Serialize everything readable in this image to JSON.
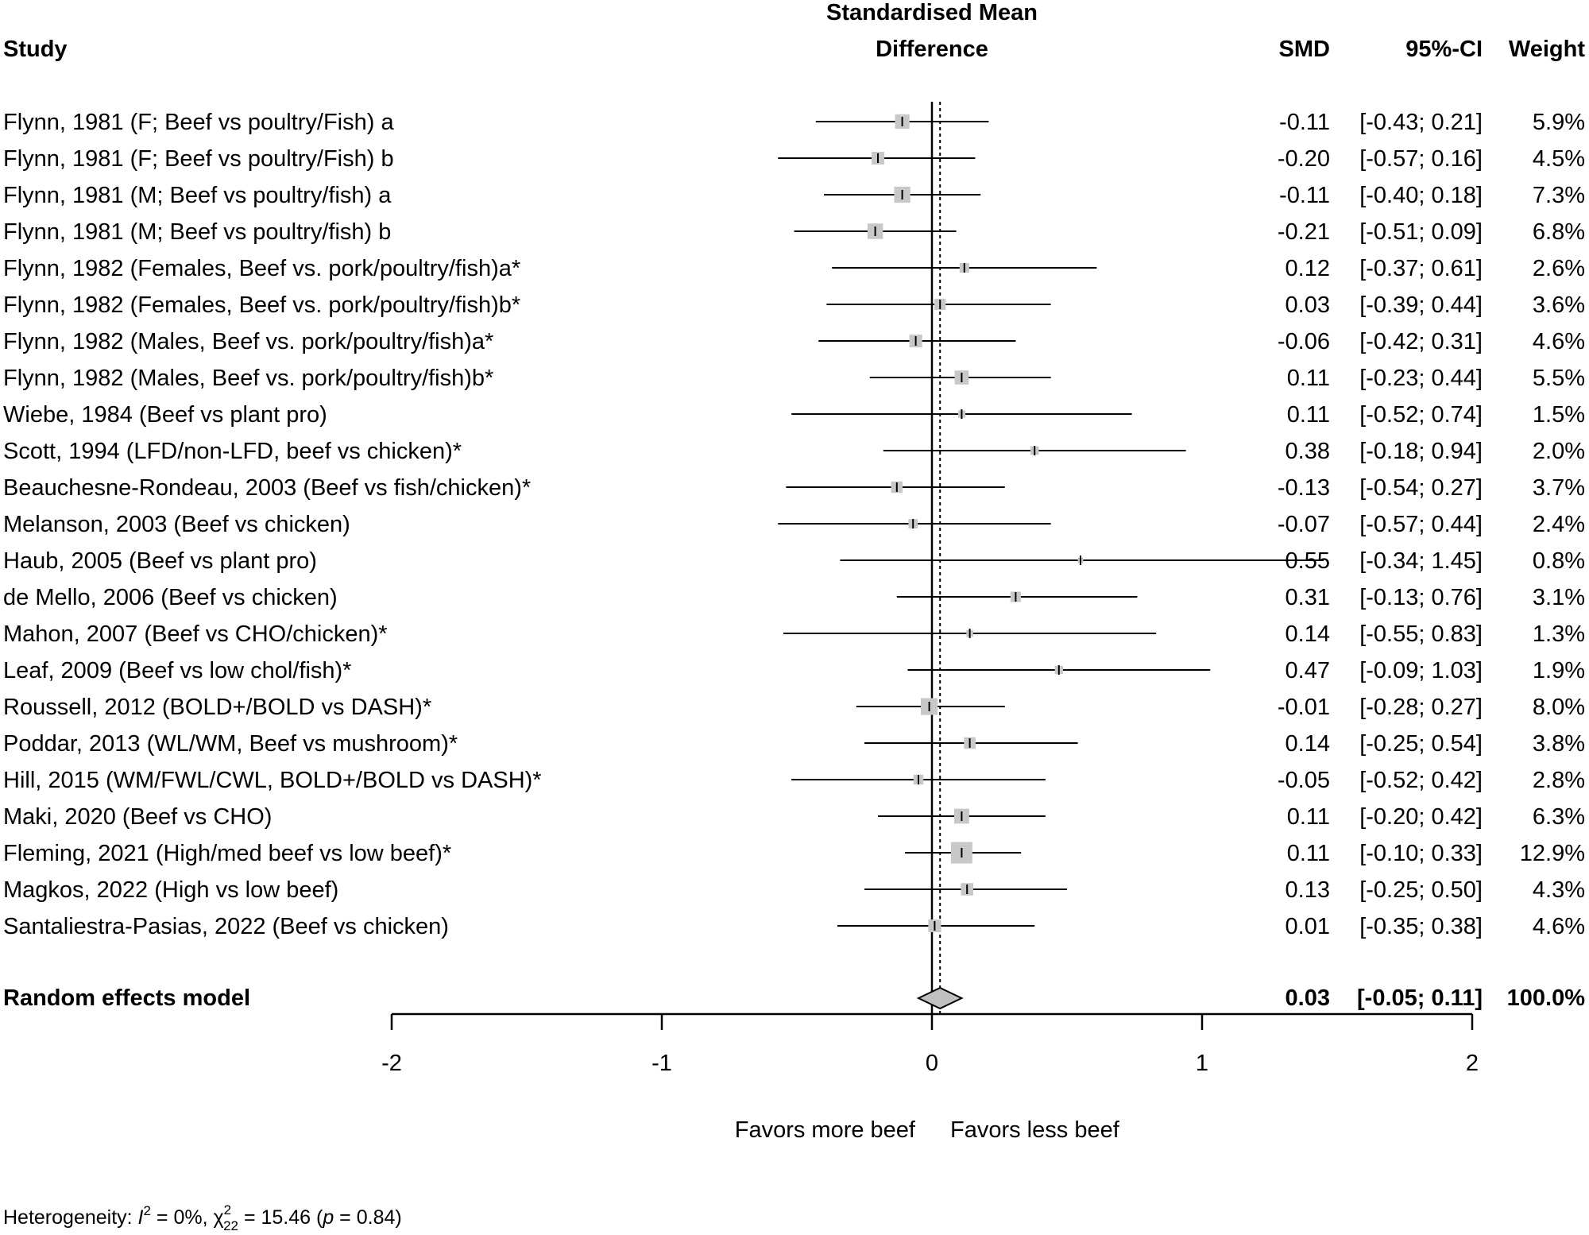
{
  "chart_data": {
    "type": "forest",
    "headers": {
      "study": "Study",
      "effect_title_line1": "Standardised Mean",
      "effect_title_line2": "Difference",
      "smd": "SMD",
      "ci": "95%-CI",
      "weight": "Weight"
    },
    "studies": [
      {
        "label": "Flynn, 1981 (F; Beef vs poultry/Fish) a",
        "smd": -0.11,
        "lower": -0.43,
        "upper": 0.21,
        "smd_text": "-0.11",
        "ci_text": "[-0.43; 0.21]",
        "weight": 5.9,
        "weight_text": "5.9%"
      },
      {
        "label": "Flynn, 1981 (F; Beef vs poultry/Fish) b",
        "smd": -0.2,
        "lower": -0.57,
        "upper": 0.16,
        "smd_text": "-0.20",
        "ci_text": "[-0.57; 0.16]",
        "weight": 4.5,
        "weight_text": "4.5%"
      },
      {
        "label": "Flynn, 1981 (M; Beef vs poultry/fish) a",
        "smd": -0.11,
        "lower": -0.4,
        "upper": 0.18,
        "smd_text": "-0.11",
        "ci_text": "[-0.40; 0.18]",
        "weight": 7.3,
        "weight_text": "7.3%"
      },
      {
        "label": "Flynn, 1981 (M; Beef vs poultry/fish) b",
        "smd": -0.21,
        "lower": -0.51,
        "upper": 0.09,
        "smd_text": "-0.21",
        "ci_text": "[-0.51; 0.09]",
        "weight": 6.8,
        "weight_text": "6.8%"
      },
      {
        "label": "Flynn, 1982 (Females, Beef vs. pork/poultry/fish)a*",
        "smd": 0.12,
        "lower": -0.37,
        "upper": 0.61,
        "smd_text": "0.12",
        "ci_text": "[-0.37; 0.61]",
        "weight": 2.6,
        "weight_text": "2.6%"
      },
      {
        "label": "Flynn, 1982 (Females, Beef vs. pork/poultry/fish)b*",
        "smd": 0.03,
        "lower": -0.39,
        "upper": 0.44,
        "smd_text": "0.03",
        "ci_text": "[-0.39; 0.44]",
        "weight": 3.6,
        "weight_text": "3.6%"
      },
      {
        "label": "Flynn, 1982 (Males, Beef vs. pork/poultry/fish)a*",
        "smd": -0.06,
        "lower": -0.42,
        "upper": 0.31,
        "smd_text": "-0.06",
        "ci_text": "[-0.42; 0.31]",
        "weight": 4.6,
        "weight_text": "4.6%"
      },
      {
        "label": "Flynn, 1982 (Males, Beef vs. pork/poultry/fish)b*",
        "smd": 0.11,
        "lower": -0.23,
        "upper": 0.44,
        "smd_text": "0.11",
        "ci_text": "[-0.23; 0.44]",
        "weight": 5.5,
        "weight_text": "5.5%"
      },
      {
        "label": "Wiebe, 1984 (Beef vs plant pro)",
        "smd": 0.11,
        "lower": -0.52,
        "upper": 0.74,
        "smd_text": "0.11",
        "ci_text": "[-0.52; 0.74]",
        "weight": 1.5,
        "weight_text": "1.5%"
      },
      {
        "label": "Scott, 1994 (LFD/non-LFD, beef vs chicken)*",
        "smd": 0.38,
        "lower": -0.18,
        "upper": 0.94,
        "smd_text": "0.38",
        "ci_text": "[-0.18; 0.94]",
        "weight": 2.0,
        "weight_text": "2.0%"
      },
      {
        "label": "Beauchesne-Rondeau, 2003 (Beef vs fish/chicken)*",
        "smd": -0.13,
        "lower": -0.54,
        "upper": 0.27,
        "smd_text": "-0.13",
        "ci_text": "[-0.54; 0.27]",
        "weight": 3.7,
        "weight_text": "3.7%"
      },
      {
        "label": "Melanson, 2003 (Beef vs chicken)",
        "smd": -0.07,
        "lower": -0.57,
        "upper": 0.44,
        "smd_text": "-0.07",
        "ci_text": "[-0.57; 0.44]",
        "weight": 2.4,
        "weight_text": "2.4%"
      },
      {
        "label": "Haub, 2005 (Beef vs plant pro)",
        "smd": 0.55,
        "lower": -0.34,
        "upper": 1.45,
        "smd_text": "0.55",
        "ci_text": "[-0.34; 1.45]",
        "weight": 0.8,
        "weight_text": "0.8%"
      },
      {
        "label": "de Mello, 2006 (Beef vs chicken)",
        "smd": 0.31,
        "lower": -0.13,
        "upper": 0.76,
        "smd_text": "0.31",
        "ci_text": "[-0.13; 0.76]",
        "weight": 3.1,
        "weight_text": "3.1%"
      },
      {
        "label": "Mahon, 2007 (Beef vs CHO/chicken)*",
        "smd": 0.14,
        "lower": -0.55,
        "upper": 0.83,
        "smd_text": "0.14",
        "ci_text": "[-0.55; 0.83]",
        "weight": 1.3,
        "weight_text": "1.3%"
      },
      {
        "label": "Leaf, 2009 (Beef vs low chol/fish)*",
        "smd": 0.47,
        "lower": -0.09,
        "upper": 1.03,
        "smd_text": "0.47",
        "ci_text": "[-0.09; 1.03]",
        "weight": 1.9,
        "weight_text": "1.9%"
      },
      {
        "label": "Roussell, 2012 (BOLD+/BOLD vs DASH)*",
        "smd": -0.01,
        "lower": -0.28,
        "upper": 0.27,
        "smd_text": "-0.01",
        "ci_text": "[-0.28; 0.27]",
        "weight": 8.0,
        "weight_text": "8.0%"
      },
      {
        "label": "Poddar, 2013 (WL/WM, Beef vs mushroom)*",
        "smd": 0.14,
        "lower": -0.25,
        "upper": 0.54,
        "smd_text": "0.14",
        "ci_text": "[-0.25; 0.54]",
        "weight": 3.8,
        "weight_text": "3.8%"
      },
      {
        "label": "Hill, 2015 (WM/FWL/CWL, BOLD+/BOLD vs DASH)*",
        "smd": -0.05,
        "lower": -0.52,
        "upper": 0.42,
        "smd_text": "-0.05",
        "ci_text": "[-0.52; 0.42]",
        "weight": 2.8,
        "weight_text": "2.8%"
      },
      {
        "label": "Maki, 2020 (Beef vs CHO)",
        "smd": 0.11,
        "lower": -0.2,
        "upper": 0.42,
        "smd_text": "0.11",
        "ci_text": "[-0.20; 0.42]",
        "weight": 6.3,
        "weight_text": "6.3%"
      },
      {
        "label": "Fleming, 2021 (High/med beef vs low beef)*",
        "smd": 0.11,
        "lower": -0.1,
        "upper": 0.33,
        "smd_text": "0.11",
        "ci_text": "[-0.10; 0.33]",
        "weight": 12.9,
        "weight_text": "12.9%"
      },
      {
        "label": "Magkos, 2022 (High vs low beef)",
        "smd": 0.13,
        "lower": -0.25,
        "upper": 0.5,
        "smd_text": "0.13",
        "ci_text": "[-0.25; 0.50]",
        "weight": 4.3,
        "weight_text": "4.3%"
      },
      {
        "label": "Santaliestra-Pasias, 2022 (Beef vs chicken)",
        "smd": 0.01,
        "lower": -0.35,
        "upper": 0.38,
        "smd_text": "0.01",
        "ci_text": "[-0.35; 0.38]",
        "weight": 4.6,
        "weight_text": "4.6%"
      }
    ],
    "pooled": {
      "label": "Random effects model",
      "smd": 0.03,
      "lower": -0.05,
      "upper": 0.11,
      "smd_text": "0.03",
      "ci_text": "[-0.05; 0.11]",
      "weight_text": "100.0%"
    },
    "x_axis": {
      "range": [
        -2,
        2
      ],
      "ticks": [
        -2,
        -1,
        0,
        1,
        2
      ],
      "tick_labels": [
        "-2",
        "-1",
        "0",
        "1",
        "2"
      ]
    },
    "favors_left": "Favors more beef",
    "favors_right": "Favors less beef",
    "heterogeneity": {
      "prefix": "Heterogeneity: ",
      "i2_symbol": "I",
      "i2_sup": "2",
      "i2_value_text": " = 0%, ",
      "chi_symbol": "χ",
      "chi_sup": "2",
      "chi_sub": "22",
      "chi_value_text": " = 15.46 (",
      "p_symbol": "p",
      "p_value_text": " = 0.84)"
    },
    "colors": {
      "box_fill": "#c8c8c8",
      "diamond_fill": "#c0c0c0",
      "line": "#000000"
    }
  }
}
